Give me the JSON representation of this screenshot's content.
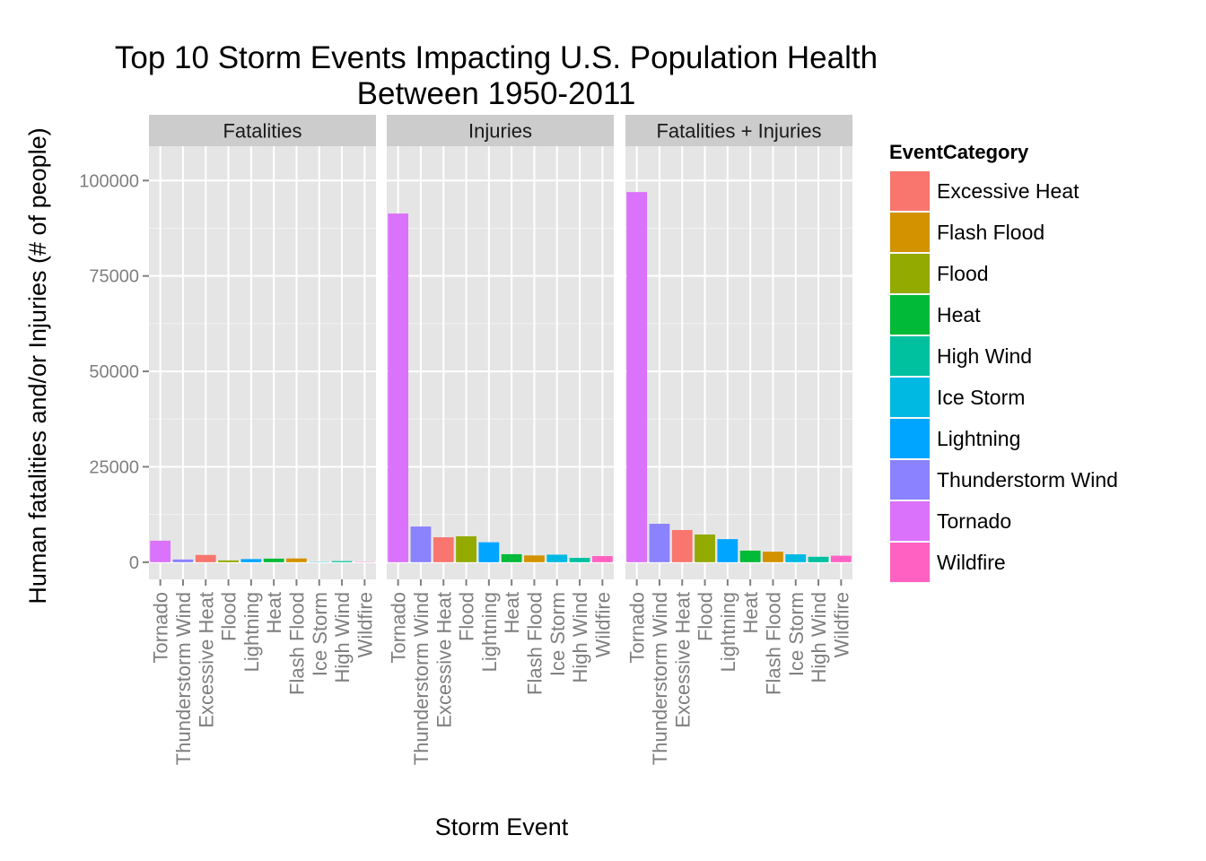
{
  "chart_data": {
    "type": "bar",
    "title_lines": [
      "Top 10 Storm Events Impacting U.S. Population Health",
      "Between 1950-2011"
    ],
    "xlabel": "Storm Event",
    "ylabel": "Human fatalities and/or Injuries (# of people)",
    "ylim": [
      -4500,
      109000
    ],
    "yticks": [
      0,
      25000,
      50000,
      75000,
      100000
    ],
    "grid": true,
    "legend_position": "right",
    "legend_title": "EventCategory",
    "categories": [
      "Tornado",
      "Thunderstorm Wind",
      "Excessive Heat",
      "Flood",
      "Lightning",
      "Heat",
      "Flash Flood",
      "Ice Storm",
      "High Wind",
      "Wildfire"
    ],
    "colors": {
      "Excessive Heat": "#F8766D",
      "Flash Flood": "#D39200",
      "Flood": "#93AA00",
      "Heat": "#00BA38",
      "High Wind": "#00C19F",
      "Ice Storm": "#00B9E3",
      "Lightning": "#00A5FF",
      "Thunderstorm Wind": "#8B82FF",
      "Tornado": "#DB72FB",
      "Wildfire": "#FF61C3"
    },
    "legend_order": [
      "Excessive Heat",
      "Flash Flood",
      "Flood",
      "Heat",
      "High Wind",
      "Ice Storm",
      "Lightning",
      "Thunderstorm Wind",
      "Tornado",
      "Wildfire"
    ],
    "panels": [
      {
        "name": "Fatalities",
        "values": [
          5633,
          709,
          1903,
          470,
          816,
          937,
          978,
          89,
          283,
          90
        ]
      },
      {
        "name": "Injuries",
        "values": [
          91346,
          9353,
          6525,
          6789,
          5230,
          2100,
          1777,
          1975,
          1137,
          1606
        ]
      },
      {
        "name": "Fatalities + Injuries",
        "values": [
          96979,
          10062,
          8428,
          7259,
          6046,
          3037,
          2755,
          2064,
          1420,
          1696
        ]
      }
    ]
  }
}
